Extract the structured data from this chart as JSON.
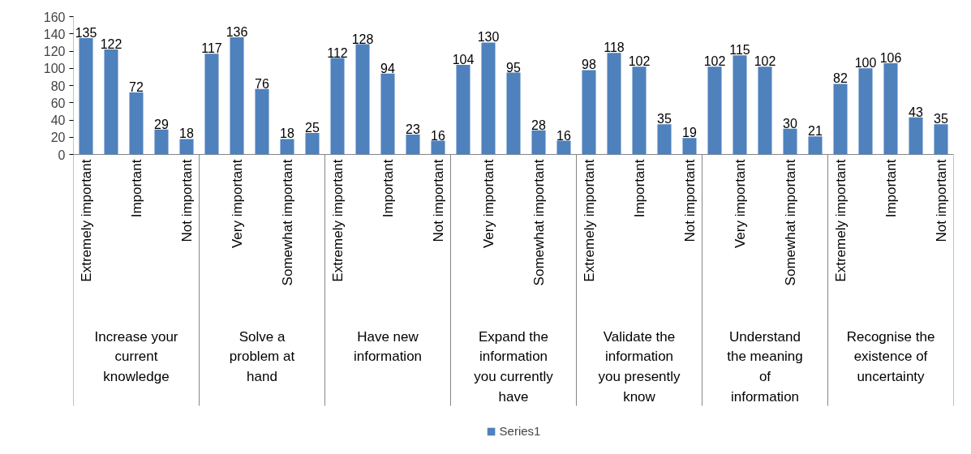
{
  "chart_data": {
    "type": "bar",
    "categories": [
      "Extremely important",
      null,
      "Important",
      null,
      "Not important",
      null,
      "Very important",
      null,
      "Somewhat important",
      null,
      "Extremely important",
      null,
      "Important",
      null,
      "Not important",
      null,
      "Very important",
      null,
      "Somewhat important",
      null,
      "Extremely important",
      null,
      "Important",
      null,
      "Not important",
      null,
      "Very important",
      null,
      "Somewhat important",
      null,
      "Extremely important",
      null,
      "Important",
      null,
      "Not important"
    ],
    "series": [
      {
        "name": "Series1",
        "color": "#4f81bd",
        "values": [
          135,
          122,
          72,
          29,
          18,
          117,
          136,
          76,
          18,
          25,
          112,
          128,
          94,
          23,
          16,
          104,
          130,
          95,
          28,
          16,
          98,
          118,
          102,
          35,
          19,
          102,
          115,
          102,
          30,
          21,
          82,
          100,
          106,
          43,
          35
        ]
      }
    ],
    "annotations": [
      "Increase your\ncurrent\nknowledge",
      "Solve a\nproblem at\nhand",
      "Have new\ninformation",
      "Expand the\ninformation\nyou currently\nhave",
      "Validate the\ninformation\nyou presently\nknow",
      "Understand\nthe meaning\nof\ninformation",
      "Recognise the\nexistence of\nuncertainty"
    ],
    "ylim": [
      0,
      160
    ],
    "yticks": [
      0,
      20,
      40,
      60,
      80,
      100,
      120,
      140,
      160
    ],
    "data_labels": true,
    "grid": false,
    "legend": "bottom"
  }
}
